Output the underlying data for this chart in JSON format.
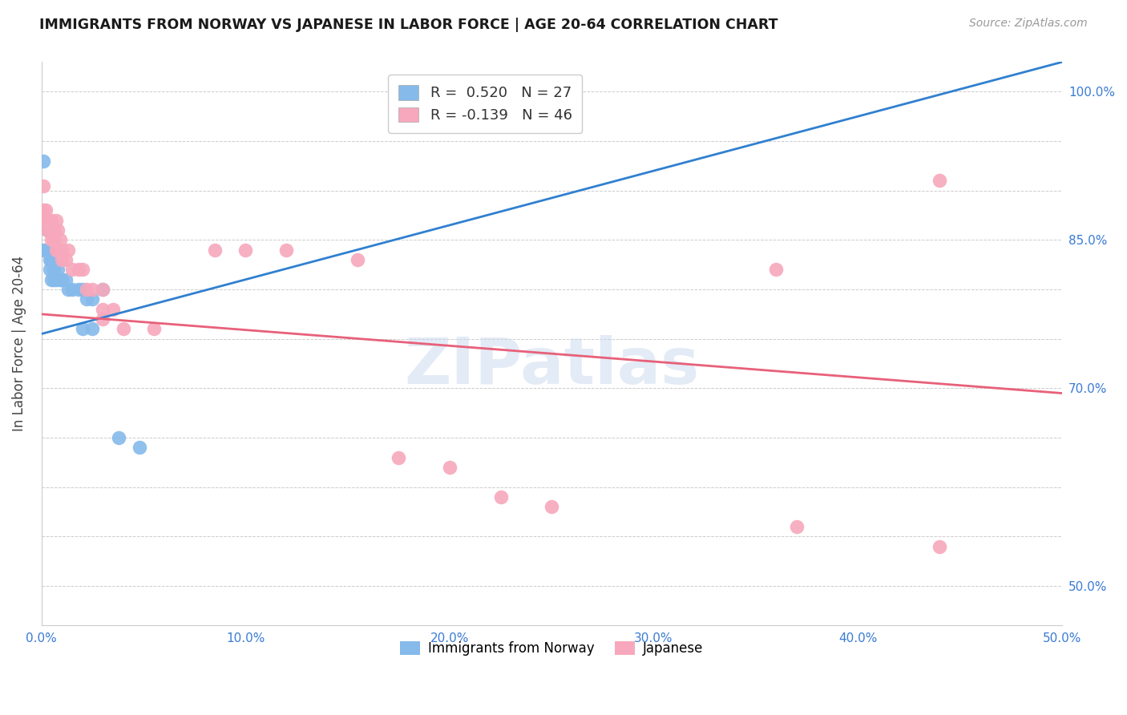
{
  "title": "IMMIGRANTS FROM NORWAY VS JAPANESE IN LABOR FORCE | AGE 20-64 CORRELATION CHART",
  "source": "Source: ZipAtlas.com",
  "ylabel": "In Labor Force | Age 20-64",
  "xlim": [
    0.0,
    0.5
  ],
  "ylim": [
    0.46,
    1.03
  ],
  "xticks": [
    0.0,
    0.1,
    0.2,
    0.3,
    0.4,
    0.5
  ],
  "xtick_labels": [
    "0.0%",
    "10.0%",
    "20.0%",
    "30.0%",
    "40.0%",
    "50.0%"
  ],
  "ytick_vals": [
    0.5,
    0.55,
    0.6,
    0.65,
    0.7,
    0.75,
    0.8,
    0.85,
    0.9,
    0.95,
    1.0
  ],
  "ytick_labels_right": [
    "50.0%",
    "",
    "",
    "",
    "70.0%",
    "",
    "",
    "85.0%",
    "",
    "",
    "100.0%"
  ],
  "norway_color": "#85baea",
  "japanese_color": "#f7a8bc",
  "norway_R": 0.52,
  "norway_N": 27,
  "japanese_R": -0.139,
  "japanese_N": 46,
  "norway_line_color": "#3080d0",
  "japanese_line_color": "#e8607a",
  "norway_line": [
    [
      0.0,
      0.5
    ],
    [
      0.755,
      1.03
    ]
  ],
  "japanese_line": [
    [
      0.0,
      0.5
    ],
    [
      0.775,
      0.695
    ]
  ],
  "norway_x": [
    0.001,
    0.001,
    0.002,
    0.003,
    0.003,
    0.004,
    0.004,
    0.005,
    0.005,
    0.006,
    0.006,
    0.007,
    0.008,
    0.009,
    0.01,
    0.012,
    0.013,
    0.015,
    0.018,
    0.02,
    0.022,
    0.025,
    0.03,
    0.025,
    0.02,
    0.038,
    0.048
  ],
  "norway_y": [
    0.93,
    0.84,
    0.84,
    0.86,
    0.84,
    0.82,
    0.83,
    0.81,
    0.83,
    0.81,
    0.82,
    0.81,
    0.82,
    0.81,
    0.81,
    0.81,
    0.8,
    0.8,
    0.8,
    0.8,
    0.79,
    0.79,
    0.8,
    0.76,
    0.76,
    0.65,
    0.64
  ],
  "japanese_x": [
    0.001,
    0.001,
    0.001,
    0.002,
    0.002,
    0.003,
    0.003,
    0.004,
    0.004,
    0.005,
    0.005,
    0.005,
    0.006,
    0.006,
    0.007,
    0.007,
    0.008,
    0.008,
    0.009,
    0.01,
    0.01,
    0.012,
    0.013,
    0.015,
    0.018,
    0.02,
    0.022,
    0.025,
    0.03,
    0.03,
    0.03,
    0.035,
    0.04,
    0.055,
    0.085,
    0.1,
    0.12,
    0.155,
    0.175,
    0.2,
    0.225,
    0.25,
    0.36,
    0.44,
    0.37,
    0.44
  ],
  "japanese_y": [
    0.905,
    0.88,
    0.87,
    0.87,
    0.88,
    0.87,
    0.86,
    0.87,
    0.86,
    0.87,
    0.85,
    0.86,
    0.86,
    0.85,
    0.87,
    0.84,
    0.86,
    0.84,
    0.85,
    0.84,
    0.83,
    0.83,
    0.84,
    0.82,
    0.82,
    0.82,
    0.8,
    0.8,
    0.8,
    0.78,
    0.77,
    0.78,
    0.76,
    0.76,
    0.84,
    0.84,
    0.84,
    0.83,
    0.63,
    0.62,
    0.59,
    0.58,
    0.82,
    0.91,
    0.56,
    0.54
  ],
  "background_color": "#ffffff",
  "grid_color": "#cccccc",
  "watermark": "ZIPatlas"
}
